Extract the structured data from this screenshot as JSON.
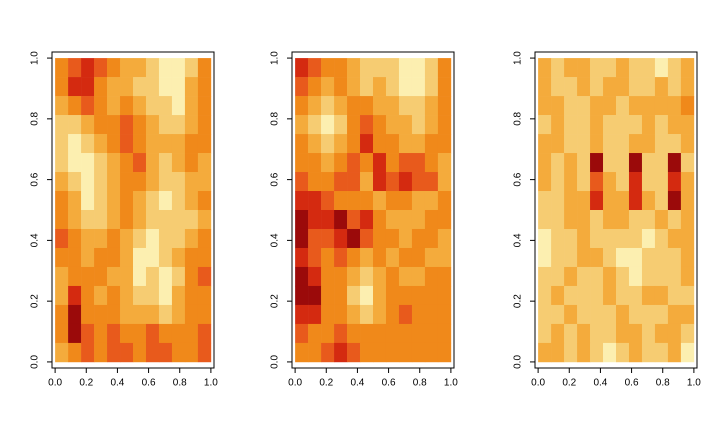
{
  "chart_data": [
    {
      "type": "heatmap",
      "xlim": [
        -0.02,
        1.02
      ],
      "ylim": [
        -0.02,
        1.02
      ],
      "xticks": [
        {
          "value": 0,
          "label": "0.0"
        },
        {
          "value": 0.2,
          "label": "0.2"
        },
        {
          "value": 0.4,
          "label": "0.4"
        },
        {
          "value": 0.6,
          "label": "0.6"
        },
        {
          "value": 0.8,
          "label": "0.8"
        },
        {
          "value": 1,
          "label": "1.0"
        }
      ],
      "yticks": [
        {
          "value": 0,
          "label": "0.0"
        },
        {
          "value": 0.2,
          "label": "0.2"
        },
        {
          "value": 0.4,
          "label": "0.4"
        },
        {
          "value": 0.6,
          "label": "0.6"
        },
        {
          "value": 0.8,
          "label": "0.8"
        },
        {
          "value": 1,
          "label": "1.0"
        }
      ],
      "colors": [
        "#9b0a0a",
        "#d42a10",
        "#e85a1c",
        "#f0891a",
        "#f4ab3c",
        "#f6cc72",
        "#fcefb0"
      ],
      "z": [
        [
          3,
          2,
          1,
          2,
          3,
          4,
          4,
          5,
          6,
          6,
          5,
          3
        ],
        [
          3,
          1,
          1,
          3,
          4,
          4,
          5,
          5,
          6,
          6,
          4,
          3
        ],
        [
          4,
          3,
          2,
          3,
          4,
          3,
          4,
          5,
          5,
          6,
          4,
          3
        ],
        [
          5,
          5,
          4,
          3,
          3,
          2,
          3,
          4,
          5,
          5,
          4,
          3
        ],
        [
          5,
          6,
          5,
          4,
          3,
          2,
          3,
          4,
          4,
          4,
          3,
          3
        ],
        [
          5,
          6,
          6,
          5,
          4,
          3,
          2,
          4,
          5,
          4,
          3,
          4
        ],
        [
          4,
          5,
          6,
          5,
          4,
          3,
          3,
          4,
          5,
          5,
          4,
          4
        ],
        [
          3,
          4,
          6,
          5,
          4,
          3,
          4,
          5,
          6,
          5,
          4,
          3
        ],
        [
          3,
          4,
          5,
          5,
          4,
          3,
          4,
          5,
          5,
          5,
          5,
          4
        ],
        [
          2,
          3,
          4,
          4,
          3,
          4,
          5,
          6,
          5,
          5,
          4,
          3
        ],
        [
          3,
          3,
          4,
          3,
          3,
          4,
          6,
          6,
          5,
          4,
          3,
          3
        ],
        [
          4,
          3,
          3,
          3,
          4,
          4,
          6,
          5,
          6,
          5,
          3,
          2
        ],
        [
          4,
          1,
          3,
          4,
          3,
          4,
          5,
          5,
          6,
          4,
          3,
          3
        ],
        [
          3,
          0,
          3,
          3,
          3,
          4,
          4,
          4,
          5,
          4,
          3,
          3
        ],
        [
          3,
          0,
          2,
          3,
          2,
          3,
          3,
          2,
          3,
          3,
          3,
          2
        ],
        [
          4,
          3,
          2,
          3,
          2,
          2,
          3,
          2,
          2,
          3,
          3,
          2
        ]
      ]
    },
    {
      "type": "heatmap",
      "xlim": [
        -0.02,
        1.02
      ],
      "ylim": [
        -0.02,
        1.02
      ],
      "xticks": [
        {
          "value": 0,
          "label": "0.0"
        },
        {
          "value": 0.2,
          "label": "0.2"
        },
        {
          "value": 0.4,
          "label": "0.4"
        },
        {
          "value": 0.6,
          "label": "0.6"
        },
        {
          "value": 0.8,
          "label": "0.8"
        },
        {
          "value": 1,
          "label": "1.0"
        }
      ],
      "yticks": [
        {
          "value": 0,
          "label": "0.0"
        },
        {
          "value": 0.2,
          "label": "0.2"
        },
        {
          "value": 0.4,
          "label": "0.4"
        },
        {
          "value": 0.6,
          "label": "0.6"
        },
        {
          "value": 0.8,
          "label": "0.8"
        },
        {
          "value": 1,
          "label": "1.0"
        }
      ],
      "colors": [
        "#9b0a0a",
        "#d42a10",
        "#e85a1c",
        "#f0891a",
        "#f4ab3c",
        "#f6cc72",
        "#fcefb0"
      ],
      "z": [
        [
          1,
          2,
          3,
          3,
          4,
          5,
          5,
          5,
          6,
          6,
          5,
          3
        ],
        [
          2,
          3,
          4,
          3,
          4,
          5,
          4,
          5,
          6,
          6,
          5,
          3
        ],
        [
          3,
          4,
          5,
          4,
          3,
          3,
          4,
          4,
          5,
          5,
          4,
          3
        ],
        [
          4,
          5,
          6,
          5,
          3,
          2,
          3,
          4,
          4,
          5,
          4,
          3
        ],
        [
          3,
          4,
          5,
          4,
          3,
          1,
          3,
          3,
          4,
          4,
          3,
          3
        ],
        [
          3,
          3,
          4,
          3,
          2,
          3,
          1,
          3,
          2,
          2,
          3,
          4
        ],
        [
          2,
          3,
          3,
          2,
          2,
          4,
          1,
          2,
          1,
          2,
          2,
          4
        ],
        [
          1,
          1,
          2,
          3,
          3,
          3,
          4,
          3,
          3,
          4,
          4,
          3
        ],
        [
          0,
          1,
          1,
          0,
          2,
          1,
          3,
          4,
          4,
          4,
          3,
          3
        ],
        [
          0,
          2,
          2,
          1,
          0,
          2,
          3,
          3,
          4,
          3,
          3,
          4
        ],
        [
          1,
          2,
          3,
          2,
          3,
          4,
          3,
          4,
          3,
          3,
          4,
          4
        ],
        [
          0,
          1,
          3,
          3,
          4,
          5,
          4,
          3,
          4,
          4,
          3,
          3
        ],
        [
          0,
          0,
          3,
          3,
          5,
          6,
          4,
          3,
          3,
          3,
          3,
          3
        ],
        [
          1,
          1,
          3,
          3,
          4,
          5,
          4,
          3,
          2,
          3,
          3,
          3
        ],
        [
          2,
          3,
          3,
          2,
          3,
          3,
          3,
          3,
          3,
          3,
          3,
          3
        ],
        [
          3,
          3,
          2,
          1,
          2,
          3,
          3,
          3,
          3,
          3,
          3,
          3
        ]
      ]
    },
    {
      "type": "heatmap",
      "xlim": [
        -0.02,
        1.02
      ],
      "ylim": [
        -0.02,
        1.02
      ],
      "xticks": [
        {
          "value": 0,
          "label": "0.0"
        },
        {
          "value": 0.2,
          "label": "0.2"
        },
        {
          "value": 0.4,
          "label": "0.4"
        },
        {
          "value": 0.6,
          "label": "0.6"
        },
        {
          "value": 0.8,
          "label": "0.8"
        },
        {
          "value": 1,
          "label": "1.0"
        }
      ],
      "yticks": [
        {
          "value": 0,
          "label": "0.0"
        },
        {
          "value": 0.2,
          "label": "0.2"
        },
        {
          "value": 0.4,
          "label": "0.4"
        },
        {
          "value": 0.6,
          "label": "0.6"
        },
        {
          "value": 0.8,
          "label": "0.8"
        },
        {
          "value": 1,
          "label": "1.0"
        }
      ],
      "colors": [
        "#9b0a0a",
        "#d42a10",
        "#e85a1c",
        "#f0891a",
        "#f4ab3c",
        "#f6cc72",
        "#fcefb0"
      ],
      "z": [
        [
          4,
          5,
          4,
          4,
          5,
          5,
          4,
          5,
          5,
          6,
          5,
          4
        ],
        [
          4,
          5,
          5,
          4,
          5,
          4,
          4,
          5,
          5,
          4,
          5,
          4
        ],
        [
          4,
          4,
          5,
          5,
          4,
          4,
          5,
          4,
          4,
          4,
          4,
          3
        ],
        [
          5,
          4,
          5,
          5,
          4,
          5,
          5,
          5,
          4,
          5,
          4,
          4
        ],
        [
          4,
          4,
          5,
          5,
          4,
          5,
          5,
          4,
          4,
          5,
          5,
          4
        ],
        [
          4,
          5,
          4,
          5,
          0,
          5,
          5,
          0,
          5,
          5,
          0,
          5
        ],
        [
          4,
          5,
          4,
          5,
          2,
          4,
          5,
          1,
          5,
          5,
          1,
          4
        ],
        [
          5,
          5,
          4,
          4,
          1,
          4,
          4,
          1,
          4,
          5,
          0,
          4
        ],
        [
          5,
          5,
          4,
          4,
          5,
          4,
          4,
          5,
          5,
          4,
          5,
          4
        ],
        [
          6,
          5,
          5,
          4,
          5,
          5,
          5,
          5,
          6,
          5,
          4,
          4
        ],
        [
          6,
          5,
          5,
          4,
          4,
          5,
          6,
          6,
          5,
          5,
          5,
          4
        ],
        [
          5,
          5,
          4,
          5,
          5,
          4,
          5,
          6,
          5,
          5,
          5,
          4
        ],
        [
          5,
          4,
          5,
          5,
          5,
          4,
          5,
          5,
          4,
          4,
          5,
          5
        ],
        [
          5,
          5,
          4,
          5,
          5,
          5,
          4,
          5,
          5,
          5,
          4,
          4
        ],
        [
          5,
          4,
          5,
          4,
          5,
          5,
          4,
          4,
          5,
          4,
          4,
          5
        ],
        [
          4,
          4,
          5,
          4,
          5,
          6,
          5,
          4,
          5,
          5,
          4,
          6
        ]
      ]
    }
  ]
}
